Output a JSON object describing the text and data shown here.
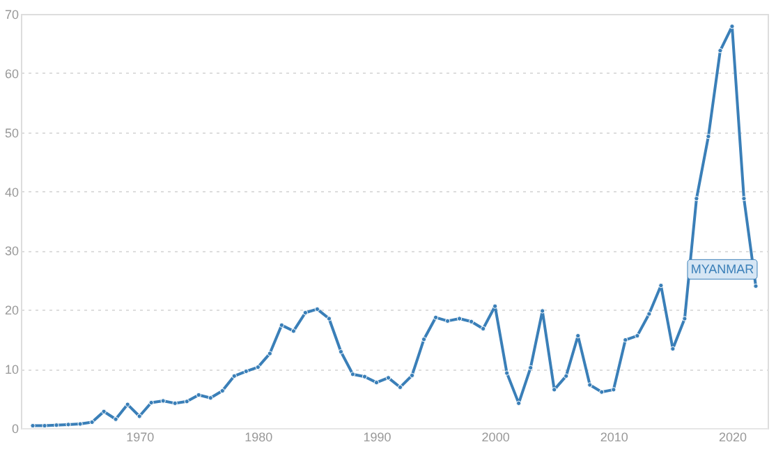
{
  "chart_data": {
    "type": "line",
    "x": [
      1961,
      1962,
      1963,
      1964,
      1965,
      1966,
      1967,
      1968,
      1969,
      1970,
      1971,
      1972,
      1973,
      1974,
      1975,
      1976,
      1977,
      1978,
      1979,
      1980,
      1981,
      1982,
      1983,
      1984,
      1985,
      1986,
      1987,
      1988,
      1989,
      1990,
      1991,
      1992,
      1993,
      1994,
      1995,
      1996,
      1997,
      1998,
      1999,
      2000,
      2001,
      2002,
      2003,
      2004,
      2005,
      2006,
      2007,
      2008,
      2009,
      2010,
      2011,
      2012,
      2013,
      2014,
      2015,
      2016,
      2017,
      2018,
      2019,
      2020,
      2021,
      2022
    ],
    "series": [
      {
        "name": "MYANMAR",
        "color": "#3a7fb8",
        "values": [
          0.4,
          0.4,
          0.5,
          0.6,
          0.7,
          1.0,
          2.8,
          1.5,
          4.0,
          2.0,
          4.3,
          4.6,
          4.2,
          4.5,
          5.6,
          5.1,
          6.3,
          8.8,
          9.6,
          10.3,
          12.6,
          17.4,
          16.4,
          19.5,
          20.1,
          18.5,
          12.9,
          9.1,
          8.7,
          7.7,
          8.5,
          6.9,
          8.9,
          15.0,
          18.7,
          18.1,
          18.5,
          18.0,
          16.8,
          20.6,
          9.3,
          4.2,
          10.2,
          19.8,
          6.5,
          8.8,
          15.6,
          7.3,
          6.1,
          6.5,
          14.9,
          15.6,
          19.3,
          24.1,
          13.4,
          18.5,
          38.8,
          49.3,
          63.8,
          67.9,
          38.8,
          24.0
        ]
      }
    ],
    "xlim": [
      1960,
      2023
    ],
    "xticks": [
      1970,
      1980,
      1990,
      2000,
      2010,
      2020
    ],
    "ylim": [
      0,
      70
    ],
    "yticks": [
      0,
      10,
      20,
      30,
      40,
      50,
      60,
      70
    ],
    "grid": "y",
    "marker": "circle",
    "line_style": "solid",
    "legend": false
  }
}
